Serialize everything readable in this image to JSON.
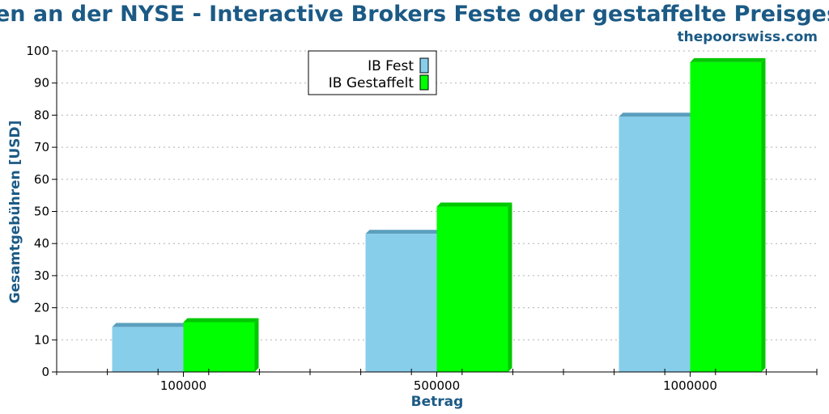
{
  "chart_data": {
    "type": "bar",
    "title": "en an der NYSE - Interactive Brokers Feste oder gestaffelte Preisges",
    "subtitle": "thepoorswiss.com",
    "xlabel": "Betrag",
    "ylabel": "Gesamtgebühren [USD]",
    "categories": [
      "100000",
      "500000",
      "1000000"
    ],
    "series": [
      {
        "name": "IB Fest",
        "values": [
          14,
          43,
          79.5
        ],
        "color": "#87ceeb",
        "side_color": "#5a9fbd"
      },
      {
        "name": "IB Gestaffelt",
        "values": [
          15.5,
          51.5,
          96.5
        ],
        "color": "#00ff00",
        "side_color": "#00c800"
      }
    ],
    "ylim": [
      0,
      100
    ],
    "yticks": [
      0,
      10,
      20,
      30,
      40,
      50,
      60,
      70,
      80,
      90,
      100
    ],
    "grid": true,
    "legend_position": "top-center"
  }
}
